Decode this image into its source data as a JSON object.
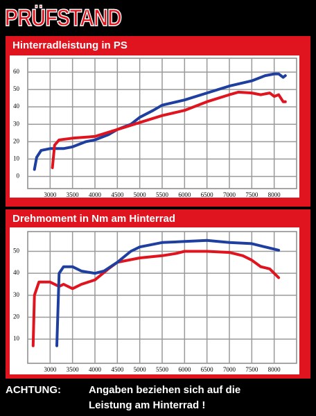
{
  "header": "PRÜFSTAND",
  "chart_data": [
    {
      "type": "line",
      "title": "Hinterradleistung in PS",
      "xlim": [
        2500,
        8500
      ],
      "xticks": [
        3000,
        3500,
        4000,
        4500,
        5000,
        5500,
        6000,
        6500,
        7000,
        7500,
        8000
      ],
      "ylim": [
        -7,
        68
      ],
      "yticks": [
        0,
        10,
        20,
        30,
        40,
        50,
        60
      ],
      "grid": true,
      "series": [
        {
          "color": "#1f3fa0",
          "x": [
            2650,
            2700,
            2800,
            3000,
            3300,
            3500,
            3800,
            4000,
            4300,
            4500,
            4800,
            5000,
            5300,
            5500,
            6000,
            6500,
            7000,
            7500,
            7800,
            8000,
            8100,
            8200,
            8250
          ],
          "values": [
            4,
            11,
            15,
            16,
            16,
            17,
            20,
            21,
            24,
            27,
            30,
            34,
            38,
            41,
            44,
            48,
            52,
            55,
            58,
            59,
            59,
            57,
            58
          ]
        },
        {
          "color": "#e0141e",
          "x": [
            3050,
            3100,
            3200,
            3500,
            4000,
            4500,
            5000,
            5500,
            6000,
            6500,
            7000,
            7200,
            7500,
            7700,
            7900,
            8000,
            8100,
            8200,
            8250
          ],
          "values": [
            5,
            18,
            21,
            22,
            23,
            27,
            31,
            35,
            38,
            43,
            47,
            48.5,
            48,
            47,
            48,
            46,
            47,
            43,
            43
          ]
        }
      ]
    },
    {
      "type": "line",
      "title": "Drehmoment in Nm am Hinterrad",
      "xlim": [
        2500,
        8500
      ],
      "xticks": [
        3000,
        3500,
        4000,
        4500,
        5000,
        5500,
        6000,
        6500,
        7000,
        7500,
        8000
      ],
      "ylim": [
        -1,
        59
      ],
      "yticks": [
        10,
        20,
        30,
        40,
        50
      ],
      "grid": true,
      "series": [
        {
          "color": "#e0141e",
          "x": [
            2620,
            2650,
            2750,
            3000,
            3200,
            3300,
            3500,
            3700,
            4000,
            4300,
            4500,
            5000,
            5500,
            5800,
            6000,
            6500,
            7000,
            7300,
            7500,
            7700,
            7900,
            8000,
            8100
          ],
          "values": [
            7,
            30,
            36,
            36,
            34,
            35,
            33,
            35,
            37,
            42,
            45,
            47,
            48,
            49,
            50,
            50,
            49.5,
            48,
            46,
            43,
            42,
            40,
            38
          ]
        },
        {
          "color": "#1f3fa0",
          "x": [
            3150,
            3200,
            3300,
            3500,
            3700,
            4000,
            4200,
            4500,
            4800,
            5000,
            5500,
            6000,
            6500,
            7000,
            7500,
            7800,
            8000,
            8100
          ],
          "values": [
            7,
            40,
            43,
            43,
            41,
            40,
            41,
            45,
            50,
            52,
            54,
            54.5,
            55,
            54,
            53.5,
            52,
            51,
            50.5
          ]
        }
      ]
    }
  ],
  "footer": {
    "label": "ACHTUNG:",
    "lines": [
      "Angaben beziehen sich auf die",
      "Leistung am Hinterrad !"
    ]
  }
}
